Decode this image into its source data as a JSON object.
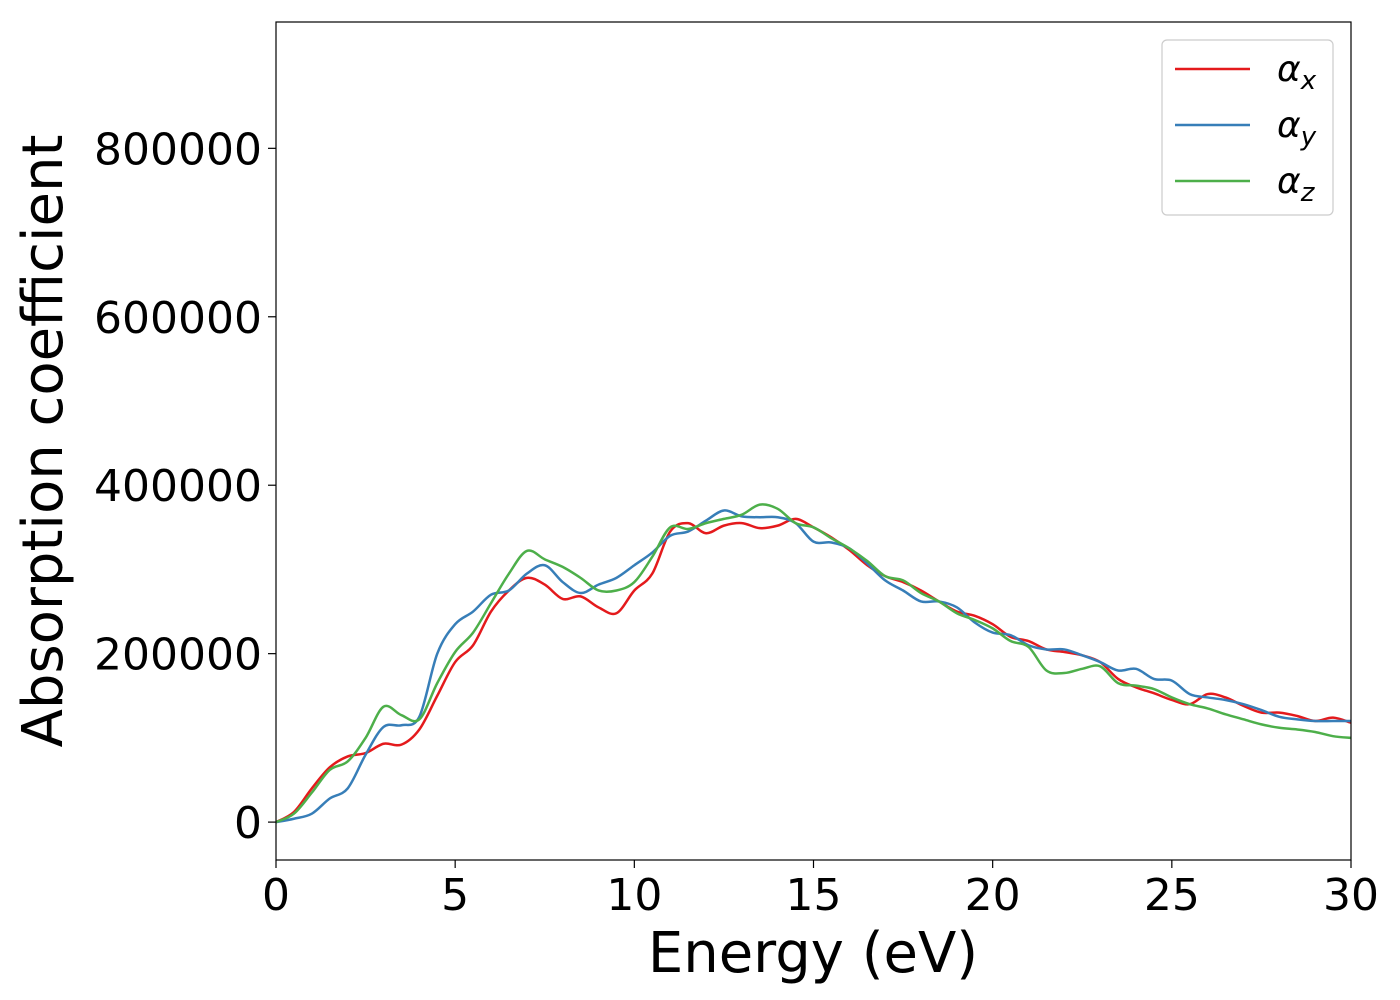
{
  "chart_data": {
    "type": "line",
    "title": "",
    "xlabel": "Energy (eV)",
    "ylabel": "Absorption coefficient",
    "xlim": [
      0,
      30
    ],
    "ylim": [
      -45000,
      950000
    ],
    "xticks": [
      0,
      5,
      10,
      15,
      20,
      25,
      30
    ],
    "yticks": [
      0,
      200000,
      400000,
      600000,
      800000
    ],
    "xtick_labels": [
      "0",
      "5",
      "10",
      "15",
      "20",
      "25",
      "30"
    ],
    "ytick_labels": [
      "0",
      "200000",
      "400000",
      "600000",
      "800000"
    ],
    "grid": false,
    "legend_position": "top-right",
    "series": [
      {
        "name": "αx",
        "symbol": "α",
        "subscript": "x",
        "color": "#e41a1c",
        "x": [
          0,
          0.5,
          1,
          1.5,
          2,
          2.5,
          3,
          3.5,
          4,
          4.5,
          5,
          5.5,
          6,
          6.5,
          7,
          7.5,
          8,
          8.5,
          9,
          9.5,
          10,
          10.5,
          11,
          11.5,
          12,
          12.5,
          13,
          13.5,
          14,
          14.5,
          15,
          15.5,
          16,
          16.5,
          17,
          17.5,
          18,
          18.5,
          19,
          19.5,
          20,
          20.5,
          21,
          21.5,
          22,
          22.5,
          23,
          23.5,
          24,
          24.5,
          25,
          25.5,
          26,
          26.5,
          27,
          27.5,
          28,
          28.5,
          29,
          29.5,
          30
        ],
        "values": [
          0,
          12000,
          40000,
          65000,
          78000,
          82000,
          93000,
          92000,
          110000,
          150000,
          190000,
          210000,
          250000,
          275000,
          290000,
          282000,
          265000,
          268000,
          255000,
          248000,
          275000,
          295000,
          345000,
          355000,
          343000,
          352000,
          355000,
          349000,
          352000,
          360000,
          350000,
          338000,
          323000,
          305000,
          292000,
          285000,
          275000,
          262000,
          250000,
          245000,
          235000,
          220000,
          215000,
          205000,
          202000,
          198000,
          190000,
          170000,
          160000,
          153000,
          145000,
          140000,
          152000,
          148000,
          138000,
          130000,
          130000,
          126000,
          120000,
          124000,
          118000
        ]
      },
      {
        "name": "αy",
        "symbol": "α",
        "subscript": "y",
        "color": "#377eb8",
        "x": [
          0,
          0.5,
          1,
          1.5,
          2,
          2.5,
          3,
          3.5,
          4,
          4.5,
          5,
          5.5,
          6,
          6.5,
          7,
          7.5,
          8,
          8.5,
          9,
          9.5,
          10,
          10.5,
          11,
          11.5,
          12,
          12.5,
          13,
          13.5,
          14,
          14.5,
          15,
          15.5,
          16,
          16.5,
          17,
          17.5,
          18,
          18.5,
          19,
          19.5,
          20,
          20.5,
          21,
          21.5,
          22,
          22.5,
          23,
          23.5,
          24,
          24.5,
          25,
          25.5,
          26,
          26.5,
          27,
          27.5,
          28,
          28.5,
          29,
          29.5,
          30
        ],
        "values": [
          0,
          4000,
          10000,
          28000,
          40000,
          80000,
          113000,
          115000,
          125000,
          200000,
          235000,
          250000,
          270000,
          275000,
          295000,
          305000,
          285000,
          272000,
          282000,
          290000,
          305000,
          320000,
          340000,
          345000,
          358000,
          370000,
          363000,
          362000,
          362000,
          355000,
          333000,
          332000,
          325000,
          307000,
          287000,
          275000,
          262000,
          262000,
          255000,
          237000,
          225000,
          222000,
          210000,
          205000,
          205000,
          198000,
          190000,
          180000,
          182000,
          170000,
          168000,
          152000,
          148000,
          145000,
          140000,
          133000,
          125000,
          122000,
          120000,
          120000,
          120000
        ]
      },
      {
        "name": "αz",
        "symbol": "α",
        "subscript": "z",
        "color": "#4daf4a",
        "x": [
          0,
          0.5,
          1,
          1.5,
          2,
          2.5,
          3,
          3.5,
          4,
          4.5,
          5,
          5.5,
          6,
          6.5,
          7,
          7.5,
          8,
          8.5,
          9,
          9.5,
          10,
          10.5,
          11,
          11.5,
          12,
          12.5,
          13,
          13.5,
          14,
          14.5,
          15,
          15.5,
          16,
          16.5,
          17,
          17.5,
          18,
          18.5,
          19,
          19.5,
          20,
          20.5,
          21,
          21.5,
          22,
          22.5,
          23,
          23.5,
          24,
          24.5,
          25,
          25.5,
          26,
          26.5,
          27,
          27.5,
          28,
          28.5,
          29,
          29.5,
          30
        ],
        "values": [
          0,
          10000,
          35000,
          62000,
          72000,
          100000,
          137000,
          127000,
          122000,
          165000,
          202000,
          225000,
          260000,
          295000,
          322000,
          312000,
          303000,
          290000,
          275000,
          275000,
          285000,
          315000,
          350000,
          348000,
          355000,
          360000,
          365000,
          377000,
          372000,
          355000,
          350000,
          337000,
          325000,
          310000,
          292000,
          287000,
          272000,
          262000,
          248000,
          240000,
          230000,
          215000,
          208000,
          180000,
          177000,
          182000,
          185000,
          165000,
          162000,
          158000,
          148000,
          140000,
          135000,
          128000,
          122000,
          116000,
          112000,
          110000,
          107000,
          102000,
          100000
        ]
      }
    ]
  }
}
